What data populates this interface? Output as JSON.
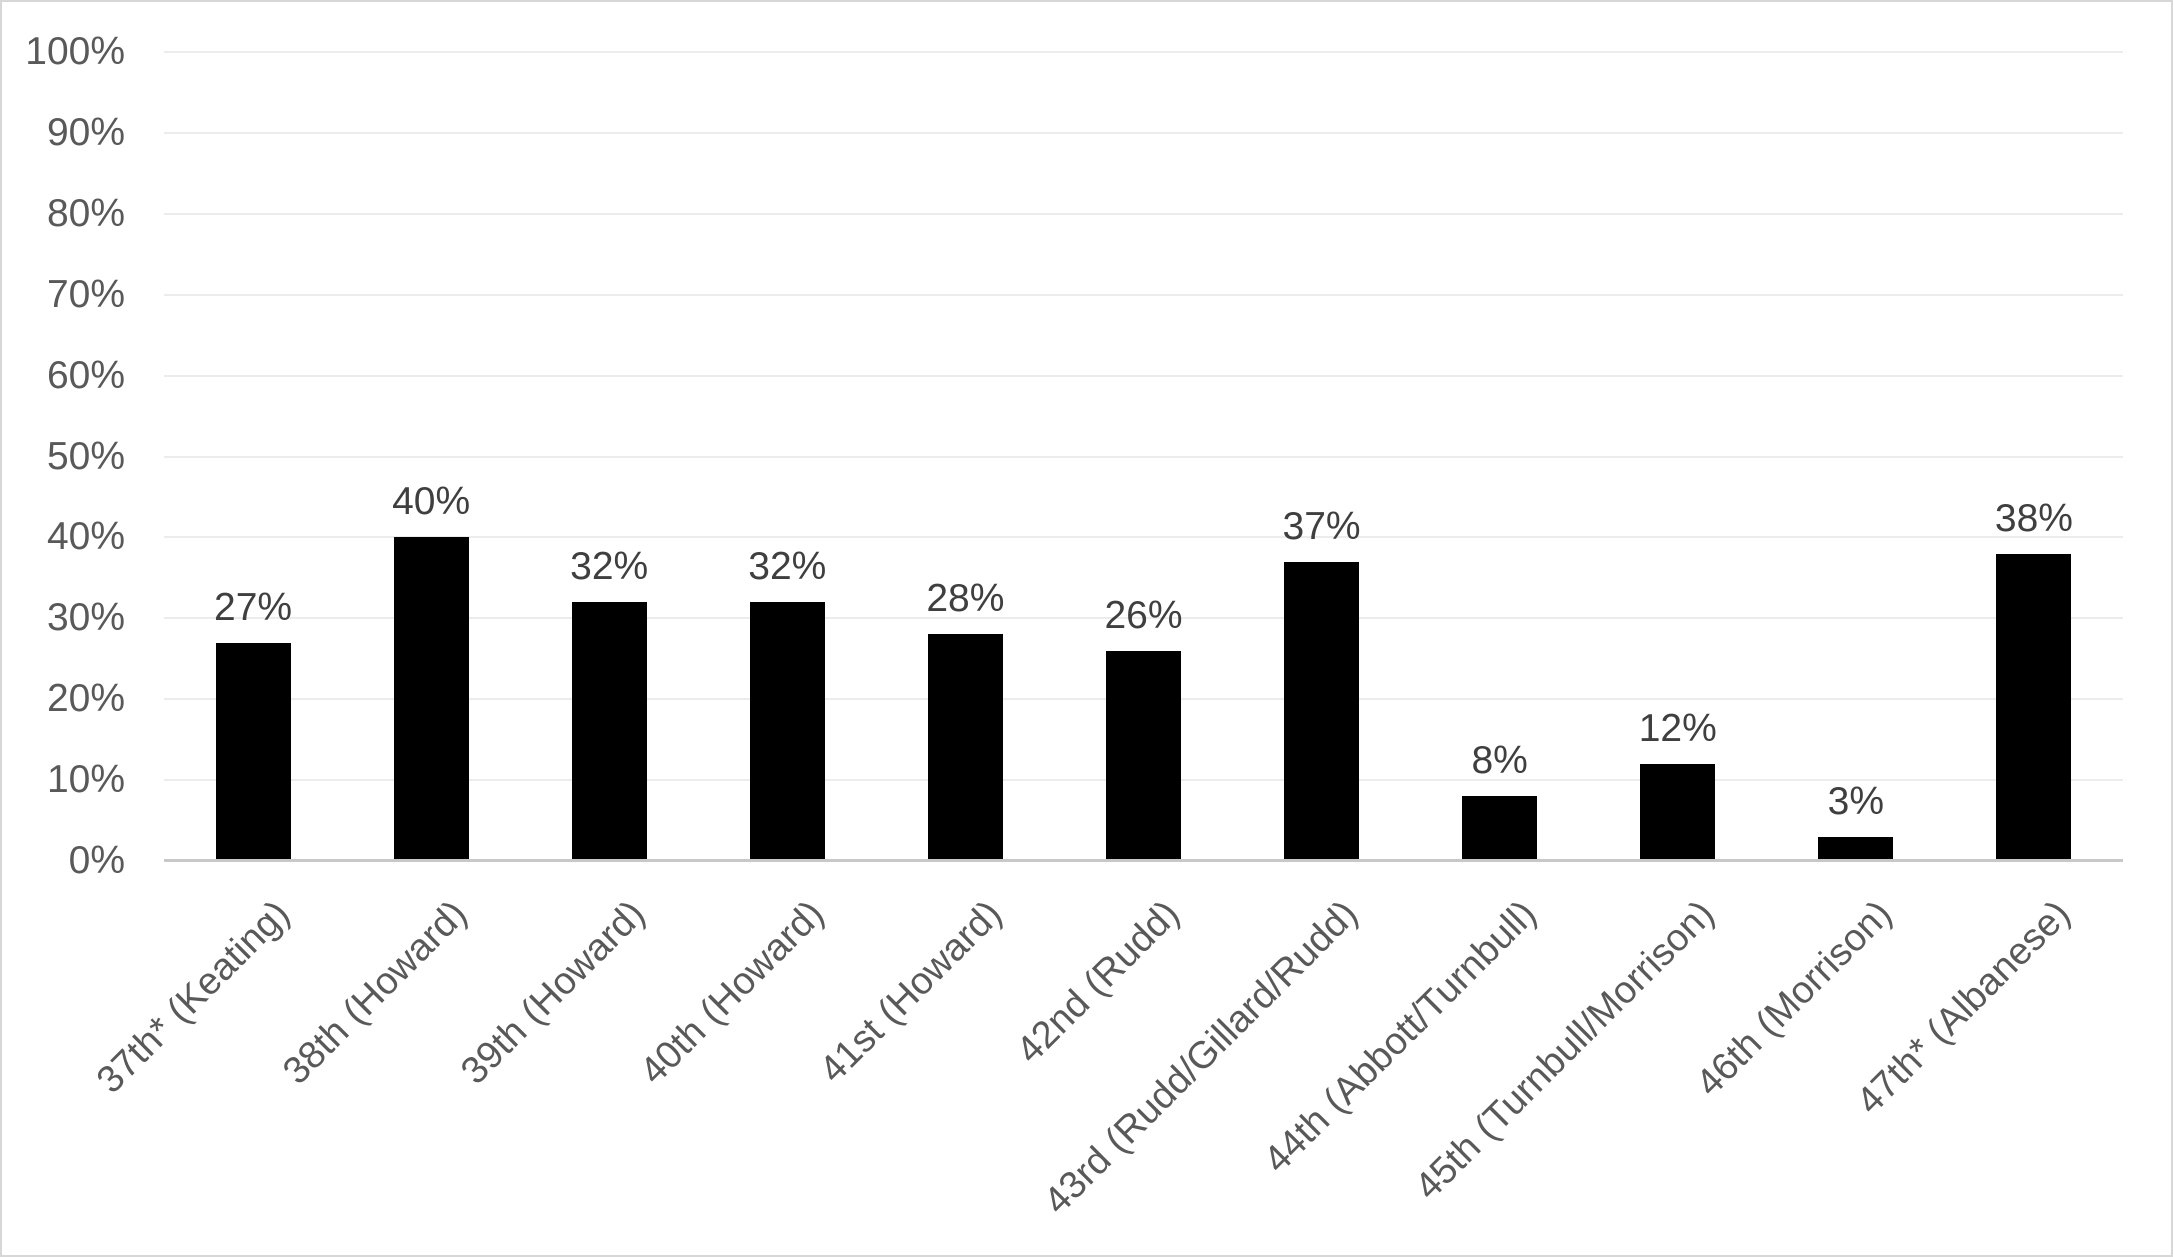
{
  "chart_data": {
    "type": "bar",
    "title": "",
    "xlabel": "",
    "ylabel": "",
    "categories": [
      "37th* (Keating)",
      "38th (Howard)",
      "39th (Howard)",
      "40th (Howard)",
      "41st (Howard)",
      "42nd (Rudd)",
      "43rd (Rudd/Gillard/Rudd)",
      "44th (Abbott/Turnbull)",
      "45th (Turnbull/Morrison)",
      "46th (Morrison)",
      "47th* (Albanese)"
    ],
    "values": [
      27,
      40,
      32,
      32,
      28,
      26,
      37,
      8,
      12,
      3,
      38
    ],
    "data_labels": [
      "27%",
      "40%",
      "32%",
      "32%",
      "28%",
      "26%",
      "37%",
      "8%",
      "12%",
      "3%",
      "38%"
    ],
    "y_ticks": [
      "0%",
      "10%",
      "20%",
      "30%",
      "40%",
      "50%",
      "60%",
      "70%",
      "80%",
      "90%",
      "100%"
    ],
    "ylim": [
      0,
      100
    ],
    "y_step": 10,
    "grid": true,
    "legend": false,
    "colors": {
      "bar": "#000000",
      "axis_text": "#595959",
      "data_label_text": "#3f3f3f",
      "gridline": "#ececec",
      "axis_line": "#c8c8c8",
      "frame_border": "#d7d7d7",
      "background": "#ffffff"
    }
  }
}
